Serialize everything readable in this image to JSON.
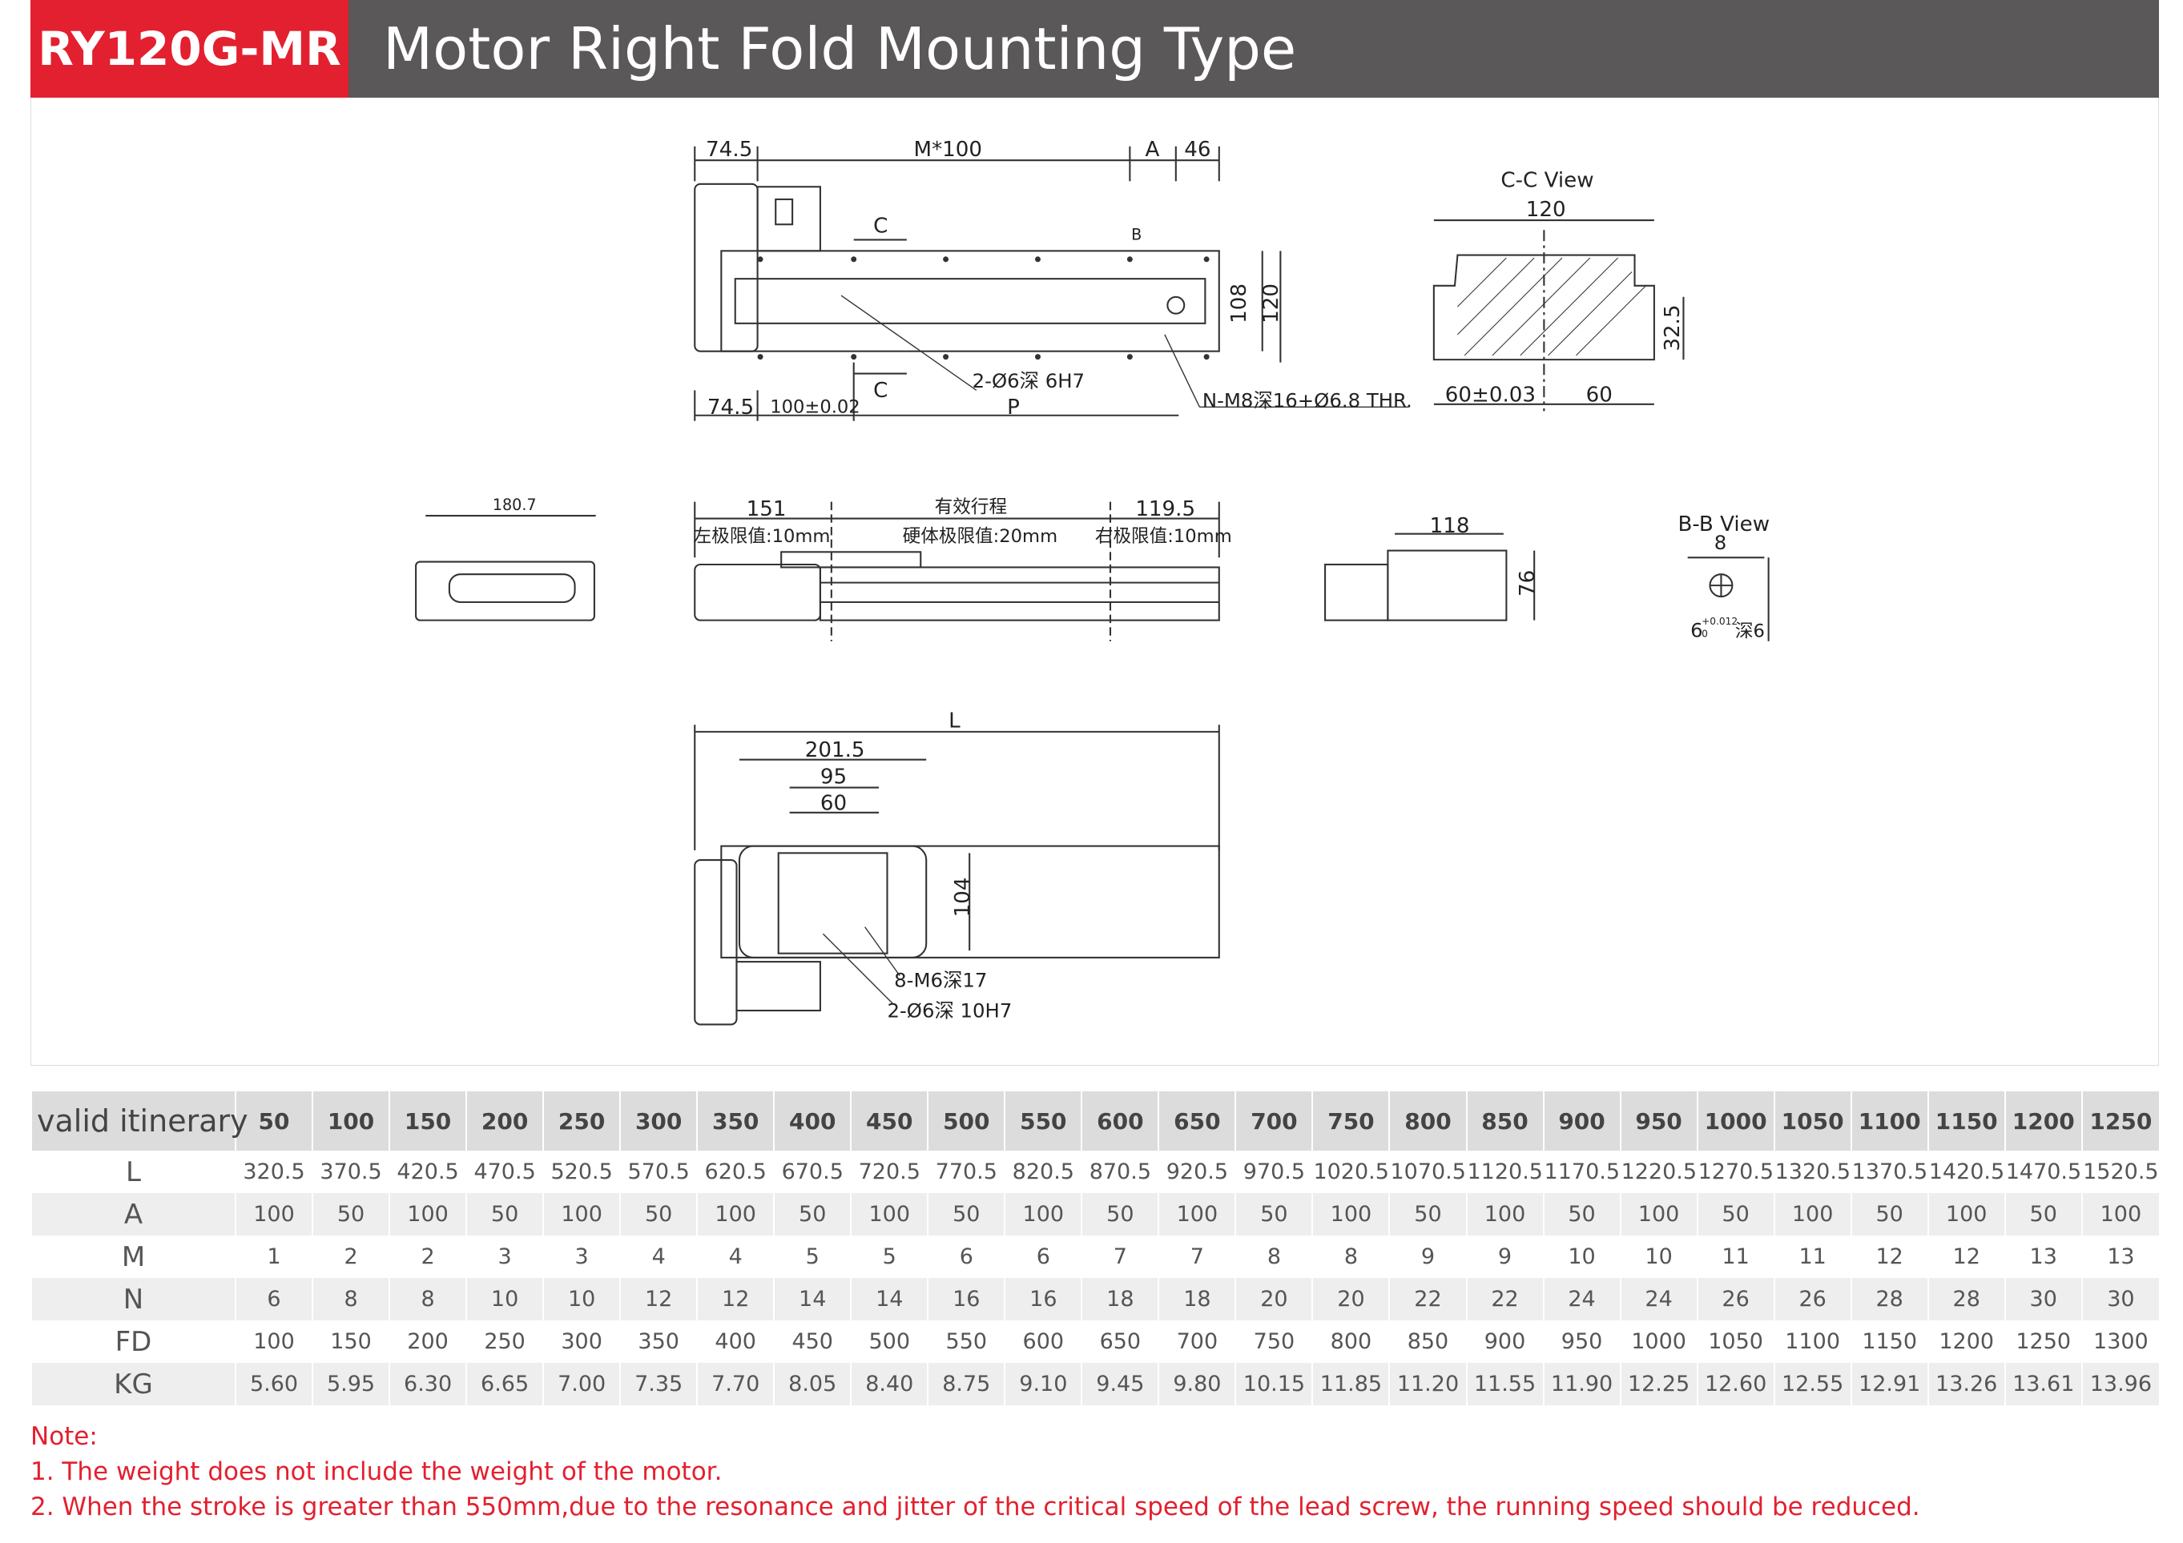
{
  "header": {
    "model": "RY120G-MR",
    "title": "Motor Right Fold Mounting Type"
  },
  "colors": {
    "brand_red": "#e3202f",
    "header_gray": "#5a5859",
    "table_header_bg": "#dcdcdc",
    "table_alt_bg": "#eeeeee"
  },
  "drawing": {
    "top_view": {
      "dim_left": "74.5",
      "dim_pitch": "M*100",
      "dim_a": "A",
      "dim_right": "46",
      "section_c_top": "C",
      "section_c_bottom": "C",
      "section_b": "B",
      "height_inner": "108",
      "height_outer": "120",
      "pin_holes": "2-Ø6深 6H7",
      "thread_holes": "N-M8深16+Ø6.8 THR.",
      "dim_left_bottom": "74.5",
      "dim_pin_pitch": "100±0.02",
      "dim_p": "P"
    },
    "cc_view": {
      "title": "C-C View",
      "width": "120",
      "height": "32.5",
      "dim_left": "60±0.03",
      "dim_right": "60"
    },
    "side_view": {
      "motor_width": "180.7",
      "dim_left": "151",
      "stroke_label": "有效行程",
      "dim_right": "119.5",
      "left_limit": "左极限值:10mm",
      "hard_limit": "硬体极限值:20mm",
      "right_limit": "右极限值:10mm",
      "end_width": "118",
      "end_height": "76"
    },
    "bb_view": {
      "title": "B-B View",
      "width": "8",
      "hole": "6",
      "tolerance_upper": "+0.012",
      "tolerance_lower": "0",
      "depth": "深6"
    },
    "bottom_view": {
      "length": "L",
      "dim_1": "201.5",
      "dim_2": "95",
      "dim_3": "60",
      "height": "104",
      "tapped_holes": "8-M6深17",
      "pin_holes": "2-Ø6深 10H7"
    }
  },
  "table": {
    "header_label": "valid itinerary",
    "strokes": [
      "50",
      "100",
      "150",
      "200",
      "250",
      "300",
      "350",
      "400",
      "450",
      "500",
      "550",
      "600",
      "650",
      "700",
      "750",
      "800",
      "850",
      "900",
      "950",
      "1000",
      "1050",
      "1100",
      "1150",
      "1200",
      "1250"
    ],
    "rows": [
      {
        "label": "L",
        "values": [
          "320.5",
          "370.5",
          "420.5",
          "470.5",
          "520.5",
          "570.5",
          "620.5",
          "670.5",
          "720.5",
          "770.5",
          "820.5",
          "870.5",
          "920.5",
          "970.5",
          "1020.5",
          "1070.5",
          "1120.5",
          "1170.5",
          "1220.5",
          "1270.5",
          "1320.5",
          "1370.5",
          "1420.5",
          "1470.5",
          "1520.5"
        ]
      },
      {
        "label": "A",
        "values": [
          "100",
          "50",
          "100",
          "50",
          "100",
          "50",
          "100",
          "50",
          "100",
          "50",
          "100",
          "50",
          "100",
          "50",
          "100",
          "50",
          "100",
          "50",
          "100",
          "50",
          "100",
          "50",
          "100",
          "50",
          "100"
        ]
      },
      {
        "label": "M",
        "values": [
          "1",
          "2",
          "2",
          "3",
          "3",
          "4",
          "4",
          "5",
          "5",
          "6",
          "6",
          "7",
          "7",
          "8",
          "8",
          "9",
          "9",
          "10",
          "10",
          "11",
          "11",
          "12",
          "12",
          "13",
          "13"
        ]
      },
      {
        "label": "N",
        "values": [
          "6",
          "8",
          "8",
          "10",
          "10",
          "12",
          "12",
          "14",
          "14",
          "16",
          "16",
          "18",
          "18",
          "20",
          "20",
          "22",
          "22",
          "24",
          "24",
          "26",
          "26",
          "28",
          "28",
          "30",
          "30"
        ]
      },
      {
        "label": "FD",
        "values": [
          "100",
          "150",
          "200",
          "250",
          "300",
          "350",
          "400",
          "450",
          "500",
          "550",
          "600",
          "650",
          "700",
          "750",
          "800",
          "850",
          "900",
          "950",
          "1000",
          "1050",
          "1100",
          "1150",
          "1200",
          "1250",
          "1300"
        ]
      },
      {
        "label": "KG",
        "values": [
          "5.60",
          "5.95",
          "6.30",
          "6.65",
          "7.00",
          "7.35",
          "7.70",
          "8.05",
          "8.40",
          "8.75",
          "9.10",
          "9.45",
          "9.80",
          "10.15",
          "11.85",
          "11.20",
          "11.55",
          "11.90",
          "12.25",
          "12.60",
          "12.55",
          "12.91",
          "13.26",
          "13.61",
          "13.96"
        ]
      }
    ]
  },
  "notes": {
    "title": "Note:",
    "items": [
      "1.  The weight does not include the weight of the motor.",
      "2. When the stroke is greater than 550mm,due to the resonance and jitter of the critical speed of the lead screw, the running speed should be reduced."
    ]
  }
}
